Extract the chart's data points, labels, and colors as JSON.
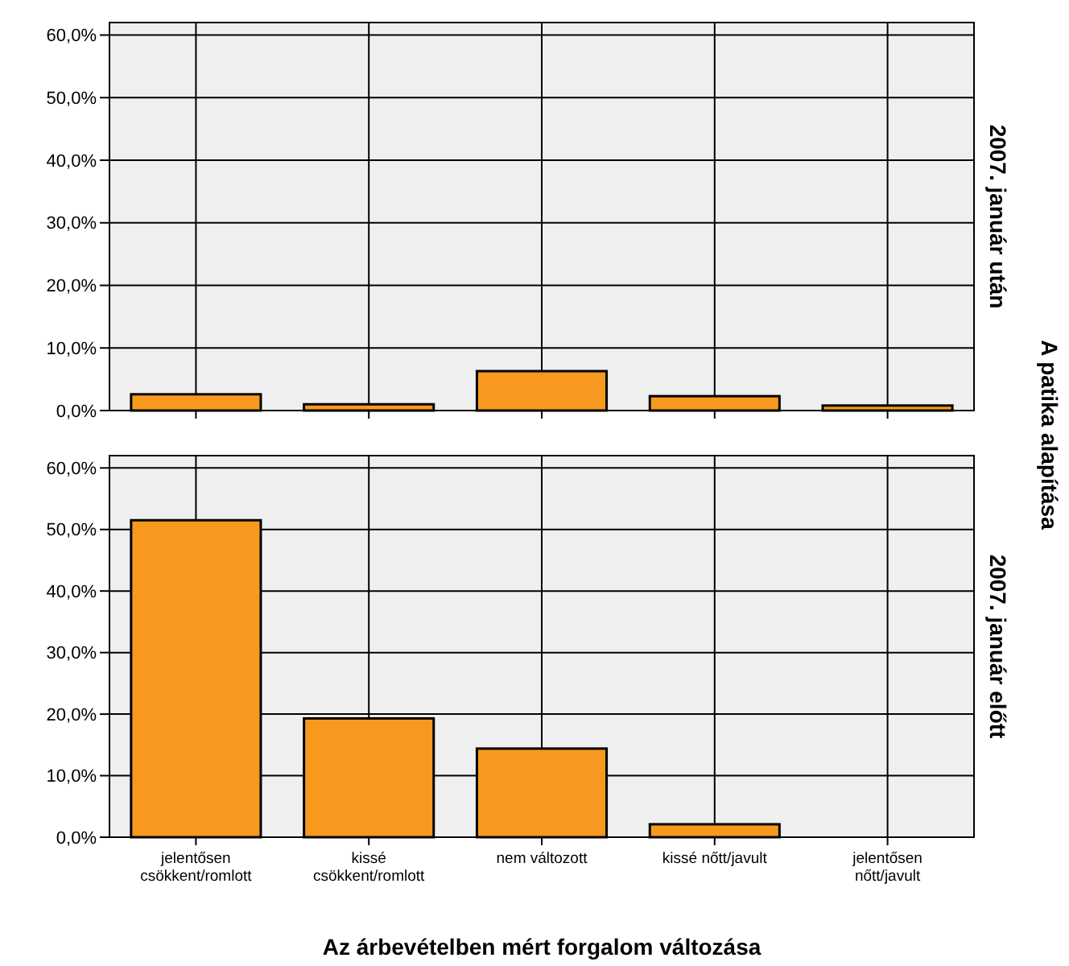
{
  "chart_data": [
    {
      "type": "bar",
      "title": "2007. január után",
      "annotations": [
        "A patika alapítása"
      ],
      "categories": [
        null,
        null,
        null,
        null,
        null
      ],
      "values": [
        2.6,
        1.0,
        6.3,
        2.3,
        0.8
      ],
      "color": "#f7991f",
      "ylim": [
        0,
        62
      ],
      "yticks": [
        {
          "value": 0,
          "label": "0,0%"
        },
        {
          "value": 10,
          "label": "10,0%"
        },
        {
          "value": 20,
          "label": "20,0%"
        },
        {
          "value": 30,
          "label": "30,0%"
        },
        {
          "value": 40,
          "label": "40,0%"
        },
        {
          "value": 50,
          "label": "50,0%"
        },
        {
          "value": 60,
          "label": "60,0%"
        }
      ],
      "grid": true,
      "tick_labels": "y"
    },
    {
      "type": "bar",
      "title": "2007. január előtt",
      "xlabel": "Az árbevételben mért forgalom változása",
      "categories": [
        "jelentősen csökkent/romlott",
        "kissé csökkent/romlott",
        "nem változott",
        "kissé nőtt/javult",
        "jelentősen nőtt/javult"
      ],
      "values": [
        51.5,
        19.3,
        14.4,
        2.1,
        0
      ],
      "color": "#f7991f",
      "ylim": [
        0,
        62
      ],
      "yticks": [
        {
          "value": 0,
          "label": "0,0%"
        },
        {
          "value": 10,
          "label": "10,0%"
        },
        {
          "value": 20,
          "label": "20,0%"
        },
        {
          "value": 30,
          "label": "30,0%"
        },
        {
          "value": 40,
          "label": "40,0%"
        },
        {
          "value": 50,
          "label": "50,0%"
        },
        {
          "value": 60,
          "label": "60,0%"
        }
      ],
      "grid": true
    }
  ]
}
